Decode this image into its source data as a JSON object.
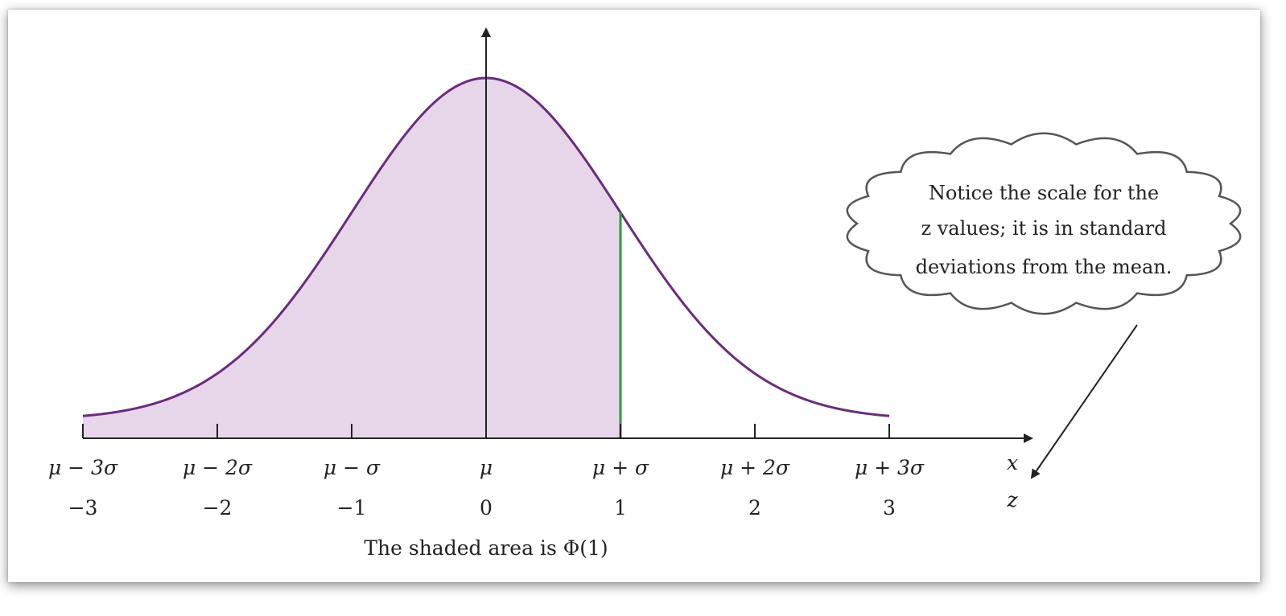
{
  "chart_data": {
    "type": "area",
    "distribution": "normal",
    "curve_color": "#6a2b7d",
    "fill_color": "#e7d6ea",
    "marker_color": "#2a9a3c",
    "shade_upper_z": 1,
    "x_range": [
      -3,
      3
    ],
    "x_ticks": [
      {
        "z": -3,
        "x_label": "μ − 3σ",
        "z_label": "−3"
      },
      {
        "z": -2,
        "x_label": "μ − 2σ",
        "z_label": "−2"
      },
      {
        "z": -1,
        "x_label": "μ − σ",
        "z_label": "−1"
      },
      {
        "z": 0,
        "x_label": "μ",
        "z_label": "0"
      },
      {
        "z": 1,
        "x_label": "μ + σ",
        "z_label": "1"
      },
      {
        "z": 2,
        "x_label": "μ + 2σ",
        "z_label": "2"
      },
      {
        "z": 3,
        "x_label": "μ + 3σ",
        "z_label": "3"
      }
    ],
    "axis_label_x": "x",
    "axis_label_z": "z",
    "caption": "The shaded area is Φ(1)",
    "annotation": {
      "lines": [
        "Notice the scale for the",
        "z values; it is in standard",
        "deviations from the mean."
      ]
    }
  }
}
